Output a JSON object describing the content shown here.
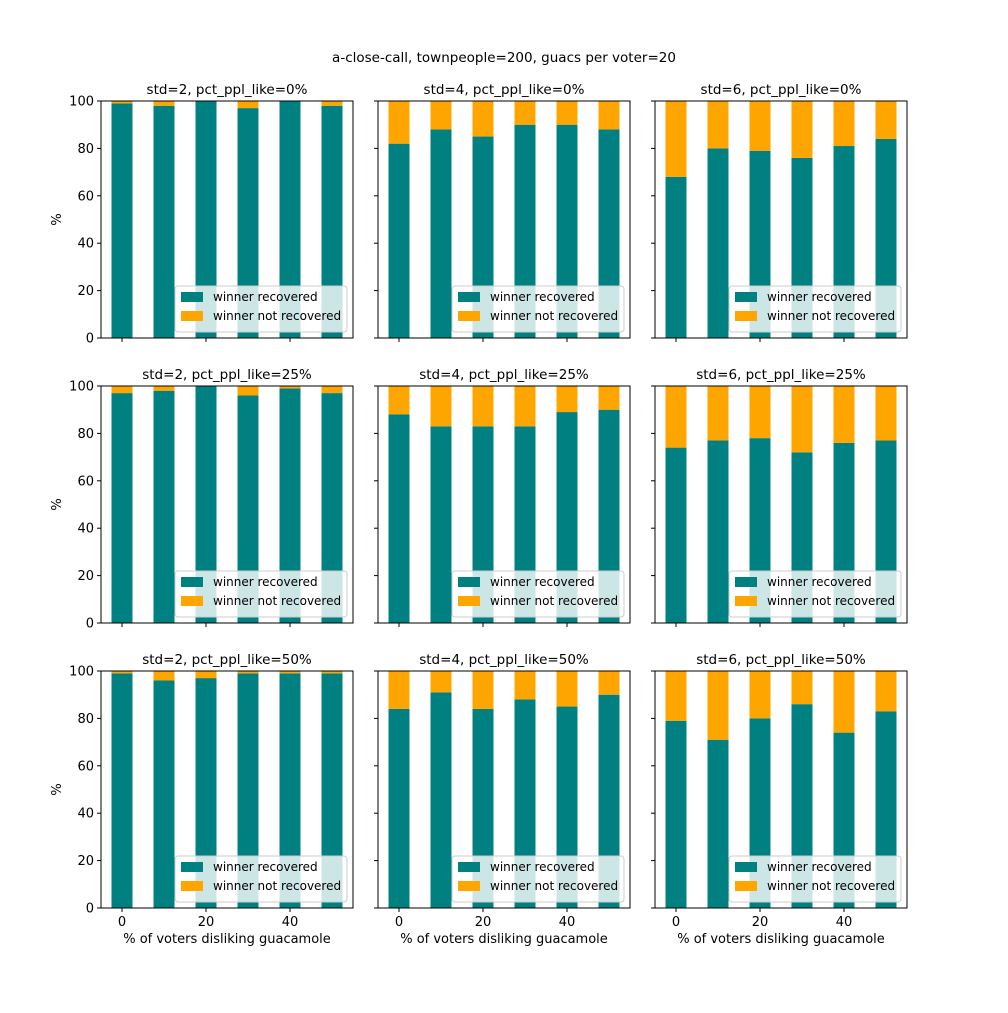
{
  "suptitle": "a-close-call, townpeople=200, guacs per voter=20",
  "colors": {
    "recovered": "#008080",
    "not_recovered": "#FFA500"
  },
  "chart_data": {
    "type": "bar",
    "stacked": true,
    "grid": false,
    "legend_position": "lower-right",
    "legend": [
      "winner recovered",
      "winner not recovered"
    ],
    "x": [
      0,
      10,
      20,
      30,
      40,
      50
    ],
    "xticks": [
      0,
      20,
      40
    ],
    "xlabel": "% of voters disliking guacamole",
    "ylabel": "%",
    "ylim": [
      0,
      100
    ],
    "yticks": [
      0,
      20,
      40,
      60,
      80,
      100
    ],
    "panels": [
      {
        "title": "std=2, pct_ppl_like=0%",
        "recovered": [
          99,
          98,
          100,
          97,
          100,
          98
        ]
      },
      {
        "title": "std=4, pct_ppl_like=0%",
        "recovered": [
          82,
          88,
          85,
          90,
          90,
          88
        ]
      },
      {
        "title": "std=6, pct_ppl_like=0%",
        "recovered": [
          68,
          80,
          79,
          76,
          81,
          84
        ]
      },
      {
        "title": "std=2, pct_ppl_like=25%",
        "recovered": [
          97,
          98,
          100,
          96,
          99,
          97
        ]
      },
      {
        "title": "std=4, pct_ppl_like=25%",
        "recovered": [
          88,
          83,
          83,
          83,
          89,
          90
        ]
      },
      {
        "title": "std=6, pct_ppl_like=25%",
        "recovered": [
          74,
          77,
          78,
          72,
          76,
          77
        ]
      },
      {
        "title": "std=2, pct_ppl_like=50%",
        "recovered": [
          99,
          96,
          97,
          99,
          99,
          99
        ]
      },
      {
        "title": "std=4, pct_ppl_like=50%",
        "recovered": [
          84,
          91,
          84,
          88,
          85,
          90
        ]
      },
      {
        "title": "std=6, pct_ppl_like=50%",
        "recovered": [
          79,
          71,
          80,
          86,
          74,
          83
        ]
      }
    ]
  }
}
